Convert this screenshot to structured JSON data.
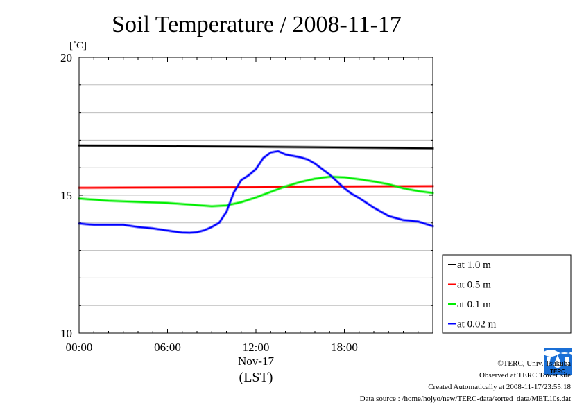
{
  "chart_data": {
    "type": "line",
    "title": "Soil Temperature / 2008-11-17",
    "ylabel": "[˚C]",
    "xlabel": "(LST)",
    "x_sublabel": "Nov-17",
    "xlim": [
      0,
      24
    ],
    "ylim": [
      10,
      20
    ],
    "x_ticks": [
      {
        "x": 0,
        "label": "00:00"
      },
      {
        "x": 6,
        "label": "06:00"
      },
      {
        "x": 12,
        "label": "12:00"
      },
      {
        "x": 18,
        "label": "18:00"
      }
    ],
    "y_ticks": [
      {
        "y": 10,
        "label": "10"
      },
      {
        "y": 15,
        "label": "15"
      },
      {
        "y": 20,
        "label": "20"
      }
    ],
    "y_gridlines": [
      11,
      12,
      13,
      14,
      15,
      16,
      17,
      18,
      19
    ],
    "legend_position": "right",
    "series": [
      {
        "name": "at 1.0 m",
        "color": "#000000",
        "x": [
          0,
          4,
          8,
          12,
          16,
          20,
          24
        ],
        "y": [
          16.8,
          16.79,
          16.78,
          16.76,
          16.74,
          16.72,
          16.7
        ]
      },
      {
        "name": "at 0.5 m",
        "color": "#ff0000",
        "x": [
          0,
          4,
          8,
          12,
          16,
          20,
          24
        ],
        "y": [
          15.27,
          15.28,
          15.29,
          15.3,
          15.31,
          15.32,
          15.33
        ]
      },
      {
        "name": "at 0.1 m",
        "color": "#00ee00",
        "x": [
          0,
          1,
          2,
          4,
          6,
          8,
          9,
          10,
          11,
          12,
          13,
          14,
          15,
          16,
          17,
          18,
          19,
          20,
          21,
          22,
          23,
          24
        ],
        "y": [
          14.88,
          14.84,
          14.8,
          14.76,
          14.72,
          14.64,
          14.6,
          14.63,
          14.75,
          14.92,
          15.12,
          15.32,
          15.48,
          15.6,
          15.67,
          15.65,
          15.58,
          15.5,
          15.4,
          15.25,
          15.15,
          15.08
        ]
      },
      {
        "name": "at 0.02 m",
        "color": "#0000ff",
        "x": [
          0,
          0.5,
          1,
          2,
          3,
          4,
          5,
          6,
          6.5,
          7,
          7.5,
          8,
          8.5,
          9,
          9.5,
          10,
          10.5,
          11,
          11.5,
          12,
          12.5,
          13,
          13.5,
          14,
          15,
          15.5,
          16,
          16.5,
          17,
          17.5,
          18,
          18.5,
          19,
          20,
          21,
          22,
          23,
          24
        ],
        "y": [
          13.98,
          13.95,
          13.93,
          13.93,
          13.93,
          13.85,
          13.8,
          13.72,
          13.68,
          13.65,
          13.64,
          13.66,
          13.73,
          13.85,
          14.0,
          14.4,
          15.1,
          15.55,
          15.72,
          15.95,
          16.35,
          16.55,
          16.6,
          16.48,
          16.38,
          16.3,
          16.15,
          15.95,
          15.75,
          15.5,
          15.25,
          15.05,
          14.9,
          14.55,
          14.25,
          14.1,
          14.05,
          13.88
        ]
      }
    ]
  },
  "footer": {
    "copyright": "©TERC, Univ. Tsukuba",
    "observed": "Observed at TERC Tower site",
    "created": "Created Automatically at 2008-11-17/23:55:18",
    "source": "Data source : /home/hojyo/new/TERC-data/sorted_data/MET.10s.dat"
  },
  "logo": {
    "text": "TERC",
    "color": "#1a6fd6"
  }
}
